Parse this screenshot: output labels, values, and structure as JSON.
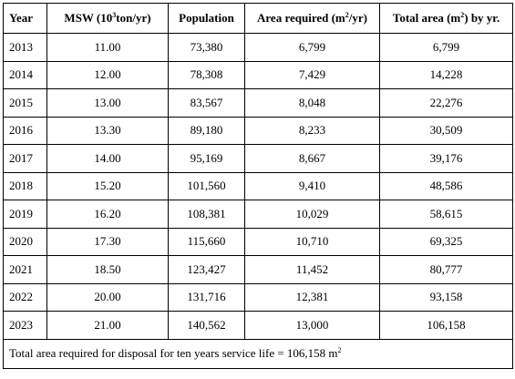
{
  "table": {
    "headers": {
      "year": "Year",
      "msw_pre": "MSW (10",
      "msw_sup": "3",
      "msw_post": "ton/yr)",
      "population": "Population",
      "area_pre": "Area required (m",
      "area_sup": "2",
      "area_post": "/yr)",
      "total_pre": "Total area (m",
      "total_sup": "2",
      "total_post": ") by yr."
    },
    "rows": [
      {
        "year": "2013",
        "msw": "11.00",
        "population": "73,380",
        "area": "6,799",
        "total": "6,799"
      },
      {
        "year": "2014",
        "msw": "12.00",
        "population": "78,308",
        "area": "7,429",
        "total": "14,228"
      },
      {
        "year": "2015",
        "msw": "13.00",
        "population": "83,567",
        "area": "8,048",
        "total": "22,276"
      },
      {
        "year": "2016",
        "msw": "13.30",
        "population": "89,180",
        "area": "8,233",
        "total": "30,509"
      },
      {
        "year": "2017",
        "msw": "14.00",
        "population": "95,169",
        "area": "8,667",
        "total": "39,176"
      },
      {
        "year": "2018",
        "msw": "15.20",
        "population": "101,560",
        "area": "9,410",
        "total": "48,586"
      },
      {
        "year": "2019",
        "msw": "16.20",
        "population": "108,381",
        "area": "10,029",
        "total": "58,615"
      },
      {
        "year": "2020",
        "msw": "17.30",
        "population": "115,660",
        "area": "10,710",
        "total": "69,325"
      },
      {
        "year": "2021",
        "msw": "18.50",
        "population": "123,427",
        "area": "11,452",
        "total": "80,777"
      },
      {
        "year": "2022",
        "msw": "20.00",
        "population": "131,716",
        "area": "12,381",
        "total": "93,158"
      },
      {
        "year": "2023",
        "msw": "21.00",
        "population": "140,562",
        "area": "13,000",
        "total": "106,158"
      }
    ],
    "footer": {
      "text": "Total area required for disposal for ten years service life = 106,158 m",
      "sup": "2"
    }
  }
}
